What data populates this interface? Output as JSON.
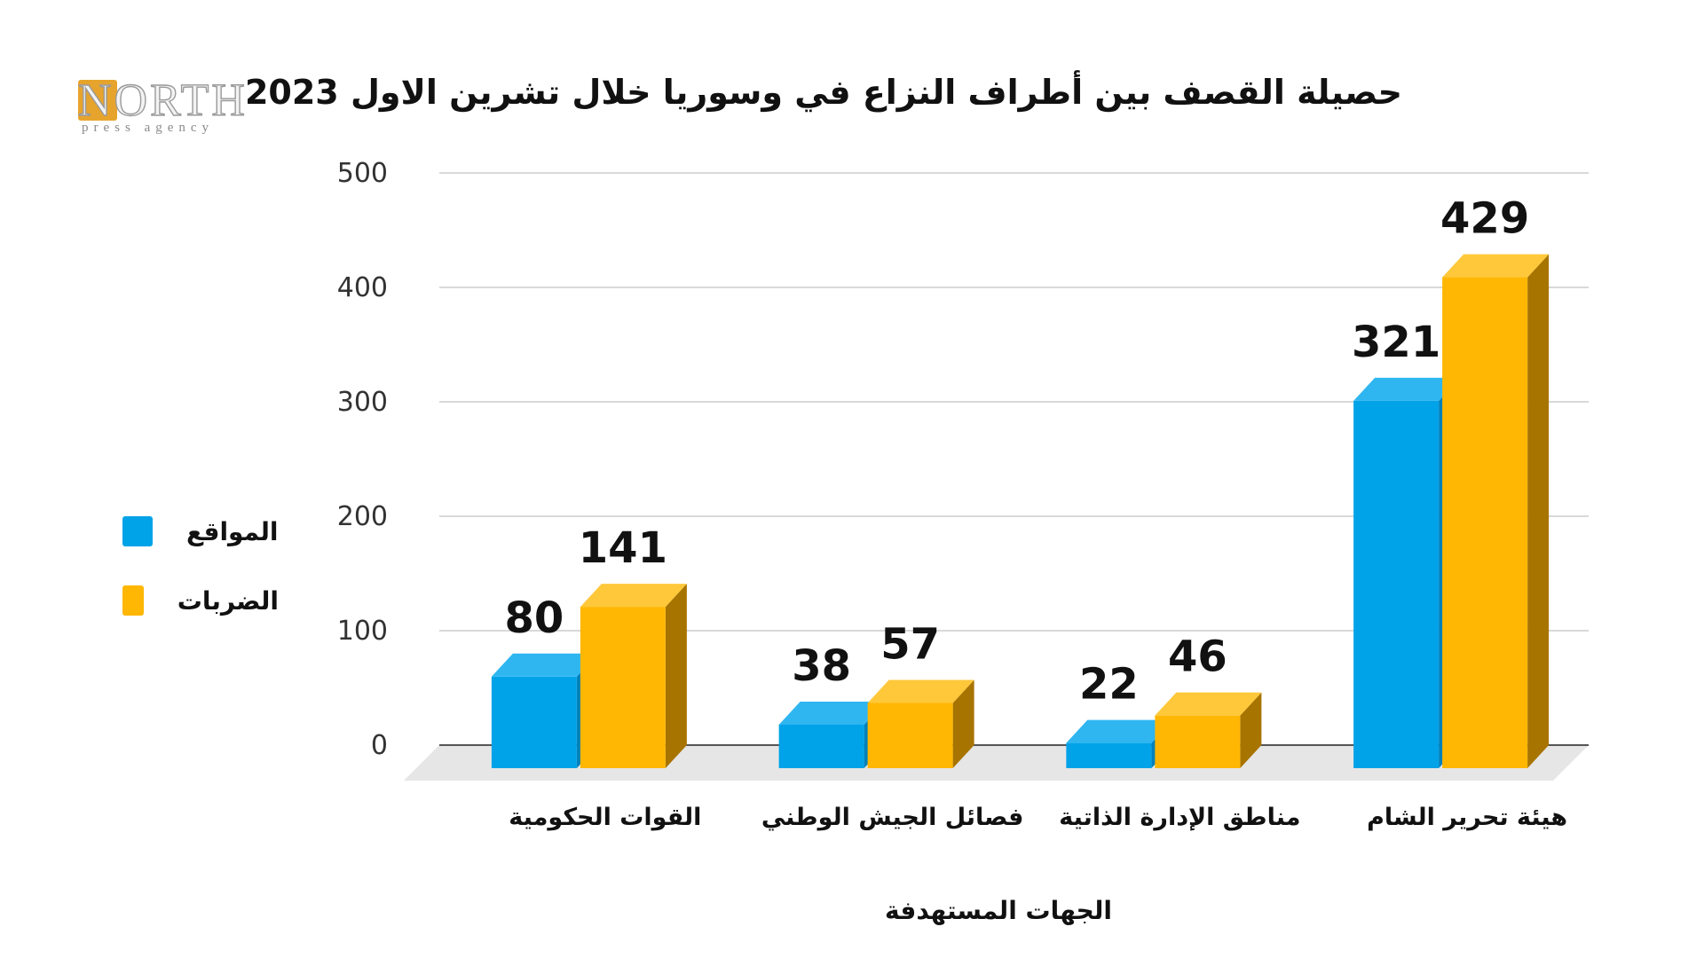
{
  "logo": {
    "word": "NORTH",
    "sub": "press agency"
  },
  "chart_data": {
    "type": "bar",
    "title": "حصيلة القصف بين أطراف النزاع في وسوريا خلال تشرين الاول 2023",
    "xlabel": "الجهات المستهدفة",
    "ylabel": "",
    "ylim": [
      0,
      500
    ],
    "yticks": [
      0,
      100,
      200,
      300,
      400,
      500
    ],
    "grid": true,
    "legend_position": "left",
    "categories": [
      "القوات الحكومية",
      "فصائل الجيش الوطني",
      "مناطق الإدارة الذاتية",
      "هيئة تحرير الشام"
    ],
    "series": [
      {
        "name": "المواقع",
        "values": [
          80,
          38,
          22,
          321
        ],
        "color": "#00a2e8"
      },
      {
        "name": "الضربات",
        "values": [
          141,
          57,
          46,
          429
        ],
        "color": "#ffb703"
      }
    ]
  },
  "colors": {
    "series_0_top": "#2fb6f0",
    "series_1_top": "#ffc83a",
    "series_1_side": "#a87400",
    "series_0_side": "#0081bb",
    "floor": "#e6e6e6",
    "grid": "#d9d9d9",
    "baseline": "#555555"
  }
}
